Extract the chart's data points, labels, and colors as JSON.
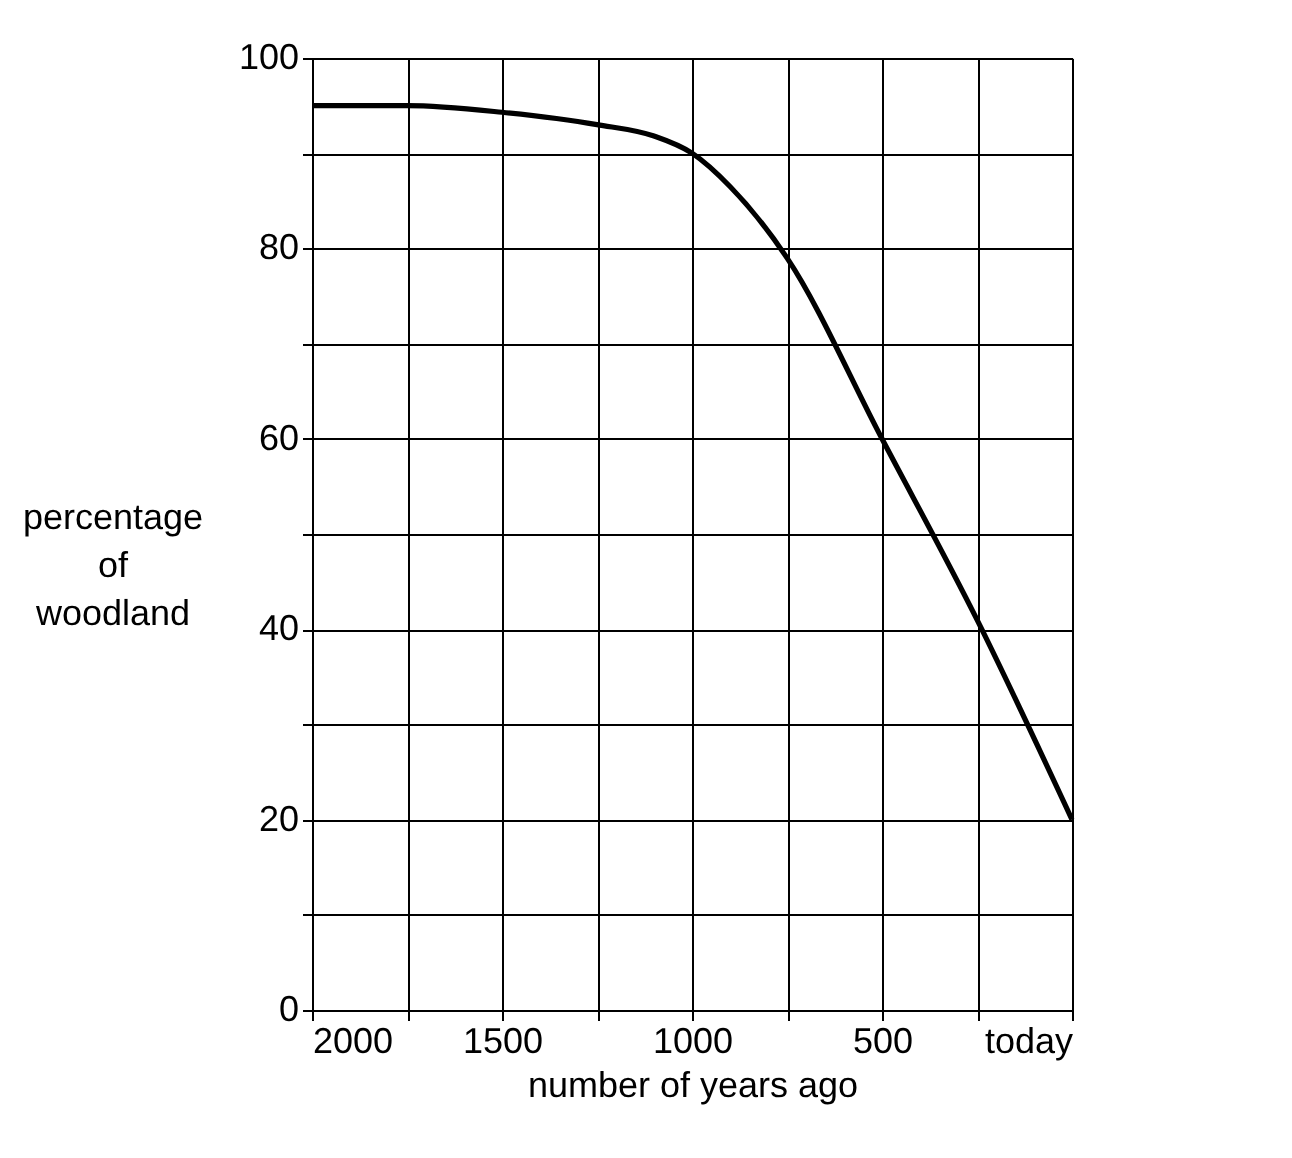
{
  "chart_data": {
    "type": "line",
    "xlabel": "number of years ago",
    "ylabel": "percentage of woodland",
    "x": [
      2000,
      1750,
      1500,
      1250,
      1100,
      1000,
      900,
      750,
      500,
      250,
      0
    ],
    "series": [
      {
        "color": "#000000",
        "values": [
          95,
          95,
          94.3,
          93,
          91.8,
          90,
          86.5,
          79,
          60,
          41,
          20
        ]
      }
    ],
    "xlim": [
      2000,
      0
    ],
    "xticks": [
      2000,
      {
        "value": 1750,
        "label": null
      },
      1500,
      {
        "value": 1250,
        "label": null
      },
      1000,
      {
        "value": 750,
        "label": null
      },
      500,
      {
        "value": 250,
        "label": null
      },
      {
        "value": 0,
        "label": "today"
      }
    ],
    "ylim": [
      0,
      100
    ],
    "yticks": [
      0,
      {
        "value": 10,
        "label": null
      },
      20,
      {
        "value": 30,
        "label": null
      },
      40,
      {
        "value": 50,
        "label": null
      },
      60,
      {
        "value": 70,
        "label": null
      },
      80,
      {
        "value": 90,
        "label": null
      },
      100
    ],
    "grid": true,
    "line_style": "solid",
    "marker": "none"
  }
}
